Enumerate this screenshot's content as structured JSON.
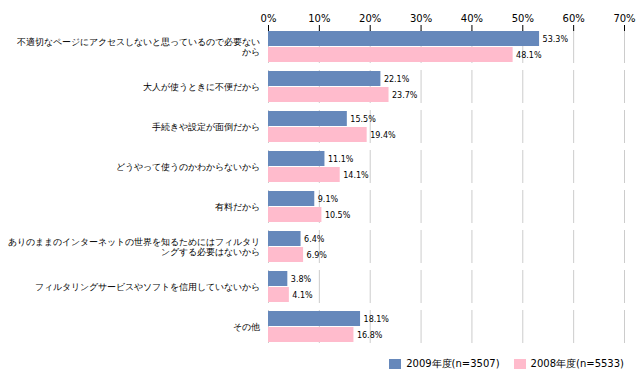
{
  "chart_data": {
    "type": "bar",
    "orientation": "horizontal",
    "categories": [
      "不適切なページにアクセスしないと思っているので必要ない\nから",
      "大人が使うときに不便だから",
      "手続きや設定が面倒だから",
      "どうやって使うのかわからないから",
      "有料だから",
      "ありのままのインターネットの世界を知るためにはフィルタリ\nングする必要はないから",
      "フィルタリングサービスやソフトを信用していないから",
      "その他"
    ],
    "series": [
      {
        "name": "2009年度(n=3507)",
        "color": "#6688BB",
        "values": [
          53.3,
          22.1,
          15.5,
          11.1,
          9.1,
          6.4,
          3.8,
          18.1
        ],
        "value_labels": [
          "53.3%",
          "22.1%",
          "15.5%",
          "11.1%",
          "9.1%",
          "6.4%",
          "3.8%",
          "18.1%"
        ]
      },
      {
        "name": "2008年度(n=5533)",
        "color": "#FFBBCC",
        "values": [
          48.1,
          23.7,
          19.4,
          14.1,
          10.5,
          6.9,
          4.1,
          16.8
        ],
        "value_labels": [
          "48.1%",
          "23.7%",
          "19.4%",
          "14.1%",
          "10.5%",
          "6.9%",
          "4.1%",
          "16.8%"
        ]
      }
    ],
    "xlim": [
      0,
      70
    ],
    "xticks": [
      {
        "value": 0,
        "label": "0%"
      },
      {
        "value": 10,
        "label": "10%"
      },
      {
        "value": 20,
        "label": "20%"
      },
      {
        "value": 30,
        "label": "30%"
      },
      {
        "value": 40,
        "label": "40%"
      },
      {
        "value": 50,
        "label": "50%"
      },
      {
        "value": 60,
        "label": "60%"
      },
      {
        "value": 70,
        "label": "70%"
      }
    ],
    "grid": true,
    "data_labels": true,
    "legend": "lower right"
  }
}
